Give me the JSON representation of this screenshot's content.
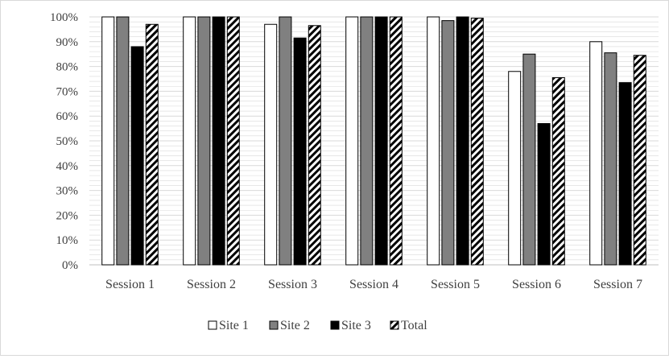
{
  "chart_data": {
    "type": "bar",
    "title": "",
    "xlabel": "",
    "ylabel": "",
    "ylim": [
      0,
      100
    ],
    "y_ticks": [
      "0%",
      "10%",
      "20%",
      "30%",
      "40%",
      "50%",
      "60%",
      "70%",
      "80%",
      "90%",
      "100%"
    ],
    "minor_grid_step": 2,
    "grid": true,
    "legend_position": "bottom",
    "categories": [
      "Session 1",
      "Session 2",
      "Session 3",
      "Session 4",
      "Session 5",
      "Session 6",
      "Session 7"
    ],
    "series": [
      {
        "name": "Site 1",
        "fill": "white",
        "values": [
          100,
          100,
          97,
          100,
          100,
          78,
          90
        ]
      },
      {
        "name": "Site 2",
        "fill": "gray",
        "values": [
          100,
          100,
          100,
          100,
          98.5,
          85,
          85.5
        ]
      },
      {
        "name": "Site 3",
        "fill": "black",
        "values": [
          88,
          100,
          91.5,
          100,
          100,
          57,
          73.5
        ]
      },
      {
        "name": "Total",
        "fill": "diagonal-stripes",
        "values": [
          97,
          100,
          96.5,
          100,
          99.5,
          75.5,
          84.5
        ]
      }
    ],
    "colors": {
      "white": "#ffffff",
      "gray": "#808080",
      "black": "#000000",
      "stripe": "#000000",
      "grid": "#d9d9d9",
      "axis": "#bfbfbf",
      "bar_border": "#000000"
    }
  }
}
